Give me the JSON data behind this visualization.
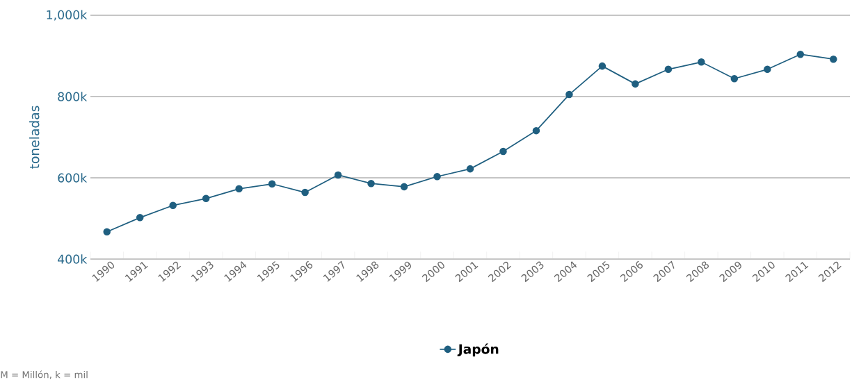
{
  "chart_data": {
    "type": "line",
    "ylabel": "toneladas",
    "categories": [
      "1990",
      "1991",
      "1992",
      "1993",
      "1994",
      "1995",
      "1996",
      "1997",
      "1998",
      "1999",
      "2000",
      "2001",
      "2002",
      "2003",
      "2004",
      "2005",
      "2006",
      "2007",
      "2008",
      "2009",
      "2010",
      "2011",
      "2012"
    ],
    "series": [
      {
        "name": "Japón",
        "color": "#1f5f80",
        "values": [
          467000,
          502000,
          532000,
          549000,
          573000,
          585000,
          564000,
          607000,
          586000,
          578000,
          603000,
          622000,
          665000,
          716000,
          805000,
          875000,
          831000,
          867000,
          885000,
          844000,
          867000,
          904000,
          892000
        ]
      }
    ],
    "ylim": [
      400000,
      1000000
    ],
    "yticks": [
      {
        "value": 400000,
        "label": "400k"
      },
      {
        "value": 600000,
        "label": "600k"
      },
      {
        "value": 800000,
        "label": "800k"
      },
      {
        "value": 1000000,
        "label": "1,000k"
      }
    ],
    "grid": "y",
    "legend": "bottom",
    "marker": "circle",
    "line_style": "solid",
    "annotations": [
      "M = Millón, k = mil"
    ]
  }
}
